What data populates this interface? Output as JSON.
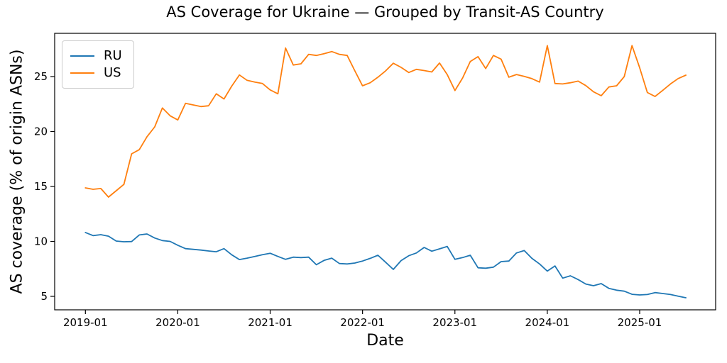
{
  "chart_data": {
    "type": "line",
    "title": "AS Coverage for Ukraine — Grouped by Transit-AS Country",
    "xlabel": "Date",
    "ylabel": "AS coverage (% of origin ASNs)",
    "legend_position": "upper left",
    "grid": false,
    "y_ticks": [
      5,
      10,
      15,
      20,
      25
    ],
    "ylim": [
      3.8,
      28.9
    ],
    "x_ticks": [
      "2019-01",
      "2020-01",
      "2021-01",
      "2022-01",
      "2023-01",
      "2024-01",
      "2025-01"
    ],
    "x": [
      "2019-01",
      "2019-02",
      "2019-03",
      "2019-04",
      "2019-05",
      "2019-06",
      "2019-07",
      "2019-08",
      "2019-09",
      "2019-10",
      "2019-11",
      "2019-12",
      "2020-01",
      "2020-02",
      "2020-03",
      "2020-04",
      "2020-05",
      "2020-06",
      "2020-07",
      "2020-08",
      "2020-09",
      "2020-10",
      "2020-11",
      "2020-12",
      "2021-01",
      "2021-02",
      "2021-03",
      "2021-04",
      "2021-05",
      "2021-06",
      "2021-07",
      "2021-08",
      "2021-09",
      "2021-10",
      "2021-11",
      "2021-12",
      "2022-01",
      "2022-02",
      "2022-03",
      "2022-04",
      "2022-05",
      "2022-06",
      "2022-07",
      "2022-08",
      "2022-09",
      "2022-10",
      "2022-11",
      "2022-12",
      "2023-01",
      "2023-02",
      "2023-03",
      "2023-04",
      "2023-05",
      "2023-06",
      "2023-07",
      "2023-08",
      "2023-09",
      "2023-10",
      "2023-11",
      "2023-12",
      "2024-01",
      "2024-02",
      "2024-03",
      "2024-04",
      "2024-05",
      "2024-06",
      "2024-07",
      "2024-08",
      "2024-09",
      "2024-10",
      "2024-11",
      "2024-12",
      "2025-01",
      "2025-02",
      "2025-03",
      "2025-04",
      "2025-05",
      "2025-06",
      "2025-07"
    ],
    "series": [
      {
        "name": "RU",
        "color": "#1f77b4",
        "values": [
          10.81,
          10.53,
          10.61,
          10.48,
          10.03,
          9.97,
          9.99,
          10.59,
          10.68,
          10.31,
          10.08,
          10.0,
          9.65,
          9.34,
          9.28,
          9.21,
          9.13,
          9.06,
          9.34,
          8.79,
          8.35,
          8.48,
          8.63,
          8.79,
          8.92,
          8.63,
          8.37,
          8.57,
          8.53,
          8.57,
          7.88,
          8.27,
          8.48,
          7.99,
          7.95,
          8.03,
          8.21,
          8.46,
          8.74,
          8.1,
          7.45,
          8.25,
          8.7,
          8.95,
          9.45,
          9.11,
          9.32,
          9.54,
          8.37,
          8.53,
          8.74,
          7.6,
          7.56,
          7.66,
          8.16,
          8.21,
          8.95,
          9.17,
          8.46,
          7.95,
          7.3,
          7.77,
          6.66,
          6.87,
          6.53,
          6.12,
          5.97,
          6.16,
          5.73,
          5.56,
          5.47,
          5.19,
          5.13,
          5.17,
          5.34,
          5.26,
          5.17,
          5.02,
          4.87
        ]
      },
      {
        "name": "US",
        "color": "#ff7f0e",
        "values": [
          14.87,
          14.74,
          14.81,
          14.03,
          14.61,
          15.19,
          17.97,
          18.35,
          19.52,
          20.42,
          22.14,
          21.43,
          21.05,
          22.57,
          22.42,
          22.27,
          22.34,
          23.43,
          22.96,
          24.12,
          25.15,
          24.66,
          24.5,
          24.37,
          23.79,
          23.43,
          27.6,
          26.05,
          26.16,
          27.02,
          26.92,
          27.08,
          27.28,
          27.02,
          26.92,
          25.52,
          24.16,
          24.44,
          24.94,
          25.52,
          26.21,
          25.84,
          25.37,
          25.66,
          25.55,
          25.42,
          26.23,
          25.19,
          23.73,
          24.87,
          26.37,
          26.81,
          25.73,
          26.92,
          26.59,
          24.94,
          25.19,
          25.02,
          24.81,
          24.5,
          27.82,
          24.37,
          24.33,
          24.44,
          24.59,
          24.18,
          23.62,
          23.26,
          24.05,
          24.16,
          25.0,
          27.82,
          25.8,
          23.55,
          23.19,
          23.75,
          24.33,
          24.82,
          25.13
        ]
      }
    ]
  }
}
